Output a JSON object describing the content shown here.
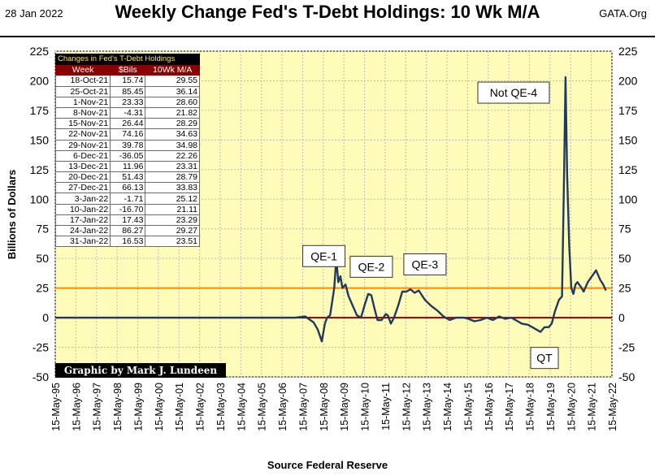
{
  "header": {
    "date": "28 Jan 2022",
    "title": "Weekly Change Fed's T-Debt Holdings: 10 Wk M/A",
    "site": "GATA.Org"
  },
  "credit": "Graphic by Mark J. Lundeen",
  "table": {
    "caption": "Changes in Fed's T-Debt Holdings",
    "columns": [
      "Week",
      "$Bils",
      "10Wk M/A"
    ],
    "rows": [
      [
        "18-Oct-21",
        "15.74",
        "29.55"
      ],
      [
        "25-Oct-21",
        "85.45",
        "36.14"
      ],
      [
        "1-Nov-21",
        "23.33",
        "28.60"
      ],
      [
        "8-Nov-21",
        "-4.31",
        "21.82"
      ],
      [
        "15-Nov-21",
        "26.44",
        "28.29"
      ],
      [
        "22-Nov-21",
        "74.16",
        "34.63"
      ],
      [
        "29-Nov-21",
        "39.78",
        "34.98"
      ],
      [
        "6-Dec-21",
        "-36.05",
        "22.26"
      ],
      [
        "13-Dec-21",
        "11.96",
        "23.31"
      ],
      [
        "20-Dec-21",
        "51.43",
        "28.79"
      ],
      [
        "27-Dec-21",
        "66.13",
        "33.83"
      ],
      [
        "3-Jan-22",
        "-1.71",
        "25.12"
      ],
      [
        "10-Jan-22",
        "-16.70",
        "21.11"
      ],
      [
        "17-Jan-22",
        "17.43",
        "23.29"
      ],
      [
        "24-Jan-22",
        "86.27",
        "29.27"
      ],
      [
        "31-Jan-22",
        "16.53",
        "23.51"
      ]
    ]
  },
  "chart_data": {
    "type": "line",
    "title": "Weekly Change Fed's T-Debt Holdings: 10 Wk M/A",
    "xlabel": "Source Federal Reserve",
    "ylabel": "Billions of Dollars",
    "ylim": [
      -50,
      225
    ],
    "yticks": [
      -50,
      -25,
      0,
      25,
      50,
      75,
      100,
      125,
      150,
      175,
      200,
      225
    ],
    "xlim": [
      1995.37,
      2022.37
    ],
    "x_tick_labels": [
      "15-May-95",
      "15-May-96",
      "15-May-97",
      "15-May-98",
      "15-May-99",
      "15-May-00",
      "15-May-01",
      "15-May-02",
      "15-May-03",
      "15-May-04",
      "15-May-05",
      "15-May-06",
      "15-May-07",
      "15-May-08",
      "15-May-09",
      "15-May-10",
      "15-May-11",
      "15-May-12",
      "15-May-13",
      "15-May-14",
      "15-May-15",
      "15-May-16",
      "15-May-17",
      "15-May-18",
      "15-May-19",
      "15-May-20",
      "15-May-21",
      "15-May-22"
    ],
    "reference_lines": [
      {
        "y": 25,
        "color": "#ff8c00"
      },
      {
        "y": 0,
        "color": "#8b0000"
      }
    ],
    "annotations": [
      {
        "text": "QE-1",
        "x": 2008.4,
        "y": 52
      },
      {
        "text": "QE-2",
        "x": 2010.7,
        "y": 43
      },
      {
        "text": "QE-3",
        "x": 2013.3,
        "y": 45
      },
      {
        "text": "Not QE-4",
        "x": 2017.6,
        "y": 190
      },
      {
        "text": "QT",
        "x": 2019.1,
        "y": -34
      }
    ],
    "series": [
      {
        "name": "10 Wk M/A",
        "color": "#1f3a5f",
        "x": [
          1995.37,
          1996,
          1997,
          1998,
          1999,
          2000,
          2001,
          2002,
          2003,
          2004,
          2005,
          2006,
          2007,
          2007.5,
          2007.9,
          2008.1,
          2008.3,
          2008.45,
          2008.55,
          2008.7,
          2008.9,
          2009.0,
          2009.1,
          2009.2,
          2009.3,
          2009.45,
          2009.6,
          2009.8,
          2010.0,
          2010.2,
          2010.4,
          2010.55,
          2010.7,
          2010.85,
          2011.0,
          2011.2,
          2011.4,
          2011.5,
          2011.65,
          2011.8,
          2012.0,
          2012.2,
          2012.4,
          2012.6,
          2012.8,
          2013.0,
          2013.3,
          2013.6,
          2013.9,
          2014.2,
          2014.5,
          2014.8,
          2015.0,
          2015.2,
          2015.4,
          2015.7,
          2016.0,
          2016.3,
          2016.6,
          2016.9,
          2017.2,
          2017.5,
          2017.8,
          2018.0,
          2018.3,
          2018.6,
          2018.9,
          2019.1,
          2019.3,
          2019.45,
          2019.6,
          2019.8,
          2019.95,
          2020.05,
          2020.12,
          2020.2,
          2020.3,
          2020.4,
          2020.5,
          2020.6,
          2020.7,
          2020.9,
          2021.0,
          2021.2,
          2021.4,
          2021.6,
          2021.8,
          2021.95,
          2022.08
        ],
        "y": [
          0,
          0,
          0,
          0,
          0,
          0,
          0,
          0,
          0,
          0,
          0,
          0,
          0,
          1,
          -4,
          -10,
          -20,
          -5,
          0,
          2,
          25,
          50,
          30,
          35,
          25,
          28,
          18,
          10,
          2,
          0,
          12,
          20,
          19,
          8,
          -2,
          -2,
          3,
          2,
          -5,
          0,
          10,
          22,
          22,
          24,
          21,
          23,
          15,
          10,
          6,
          1,
          -2,
          0,
          0,
          0,
          -1,
          -3,
          -2,
          0,
          -2,
          1,
          -1,
          0,
          -3,
          -5,
          -6,
          -9,
          -12,
          -8,
          -8,
          -5,
          5,
          15,
          18,
          120,
          203,
          120,
          60,
          25,
          20,
          28,
          30,
          25,
          22,
          30,
          35,
          40,
          32,
          28,
          23
        ]
      }
    ]
  }
}
